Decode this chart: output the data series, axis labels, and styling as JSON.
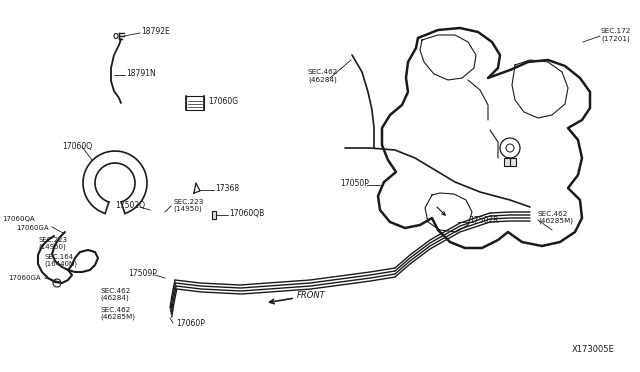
{
  "bg_color": "#ffffff",
  "line_color": "#1a1a1a",
  "text_color": "#1a1a1a",
  "diagram_id": "X173005E",
  "figsize": [
    6.4,
    3.72
  ],
  "dpi": 100,
  "xlim": [
    0,
    640
  ],
  "ylim": [
    0,
    372
  ]
}
